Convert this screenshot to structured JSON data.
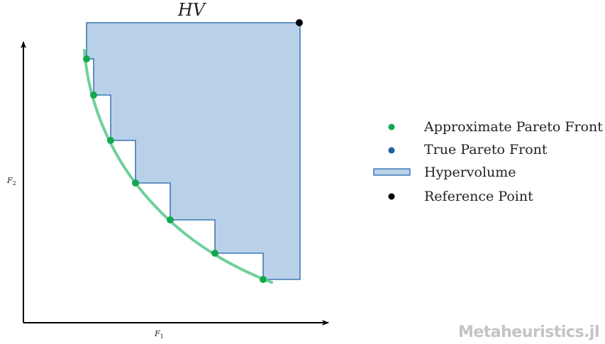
{
  "title": "HV",
  "axes": {
    "x_label": "F",
    "x_sub": "1",
    "y_label": "F",
    "y_sub": "2"
  },
  "legend": [
    {
      "label": "Approximate Pareto Front",
      "marker": "dot",
      "color": "#11a84f"
    },
    {
      "label": "True Pareto Front",
      "marker": "dot",
      "color": "#1f5fa8"
    },
    {
      "label": "Hypervolume",
      "marker": "box",
      "color": "#b9d1e8"
    },
    {
      "label": "Reference Point",
      "marker": "dot",
      "color": "#000000"
    }
  ],
  "colors": {
    "hypervolume_fill": "#b9d1e8",
    "hypervolume_stroke": "#1f5fa8",
    "pareto_curve": "#6fd09a",
    "approx_points": "#11a84f",
    "reference_point": "#000000",
    "axes": "#000000"
  },
  "watermark": "Metaheuristics.jl"
}
